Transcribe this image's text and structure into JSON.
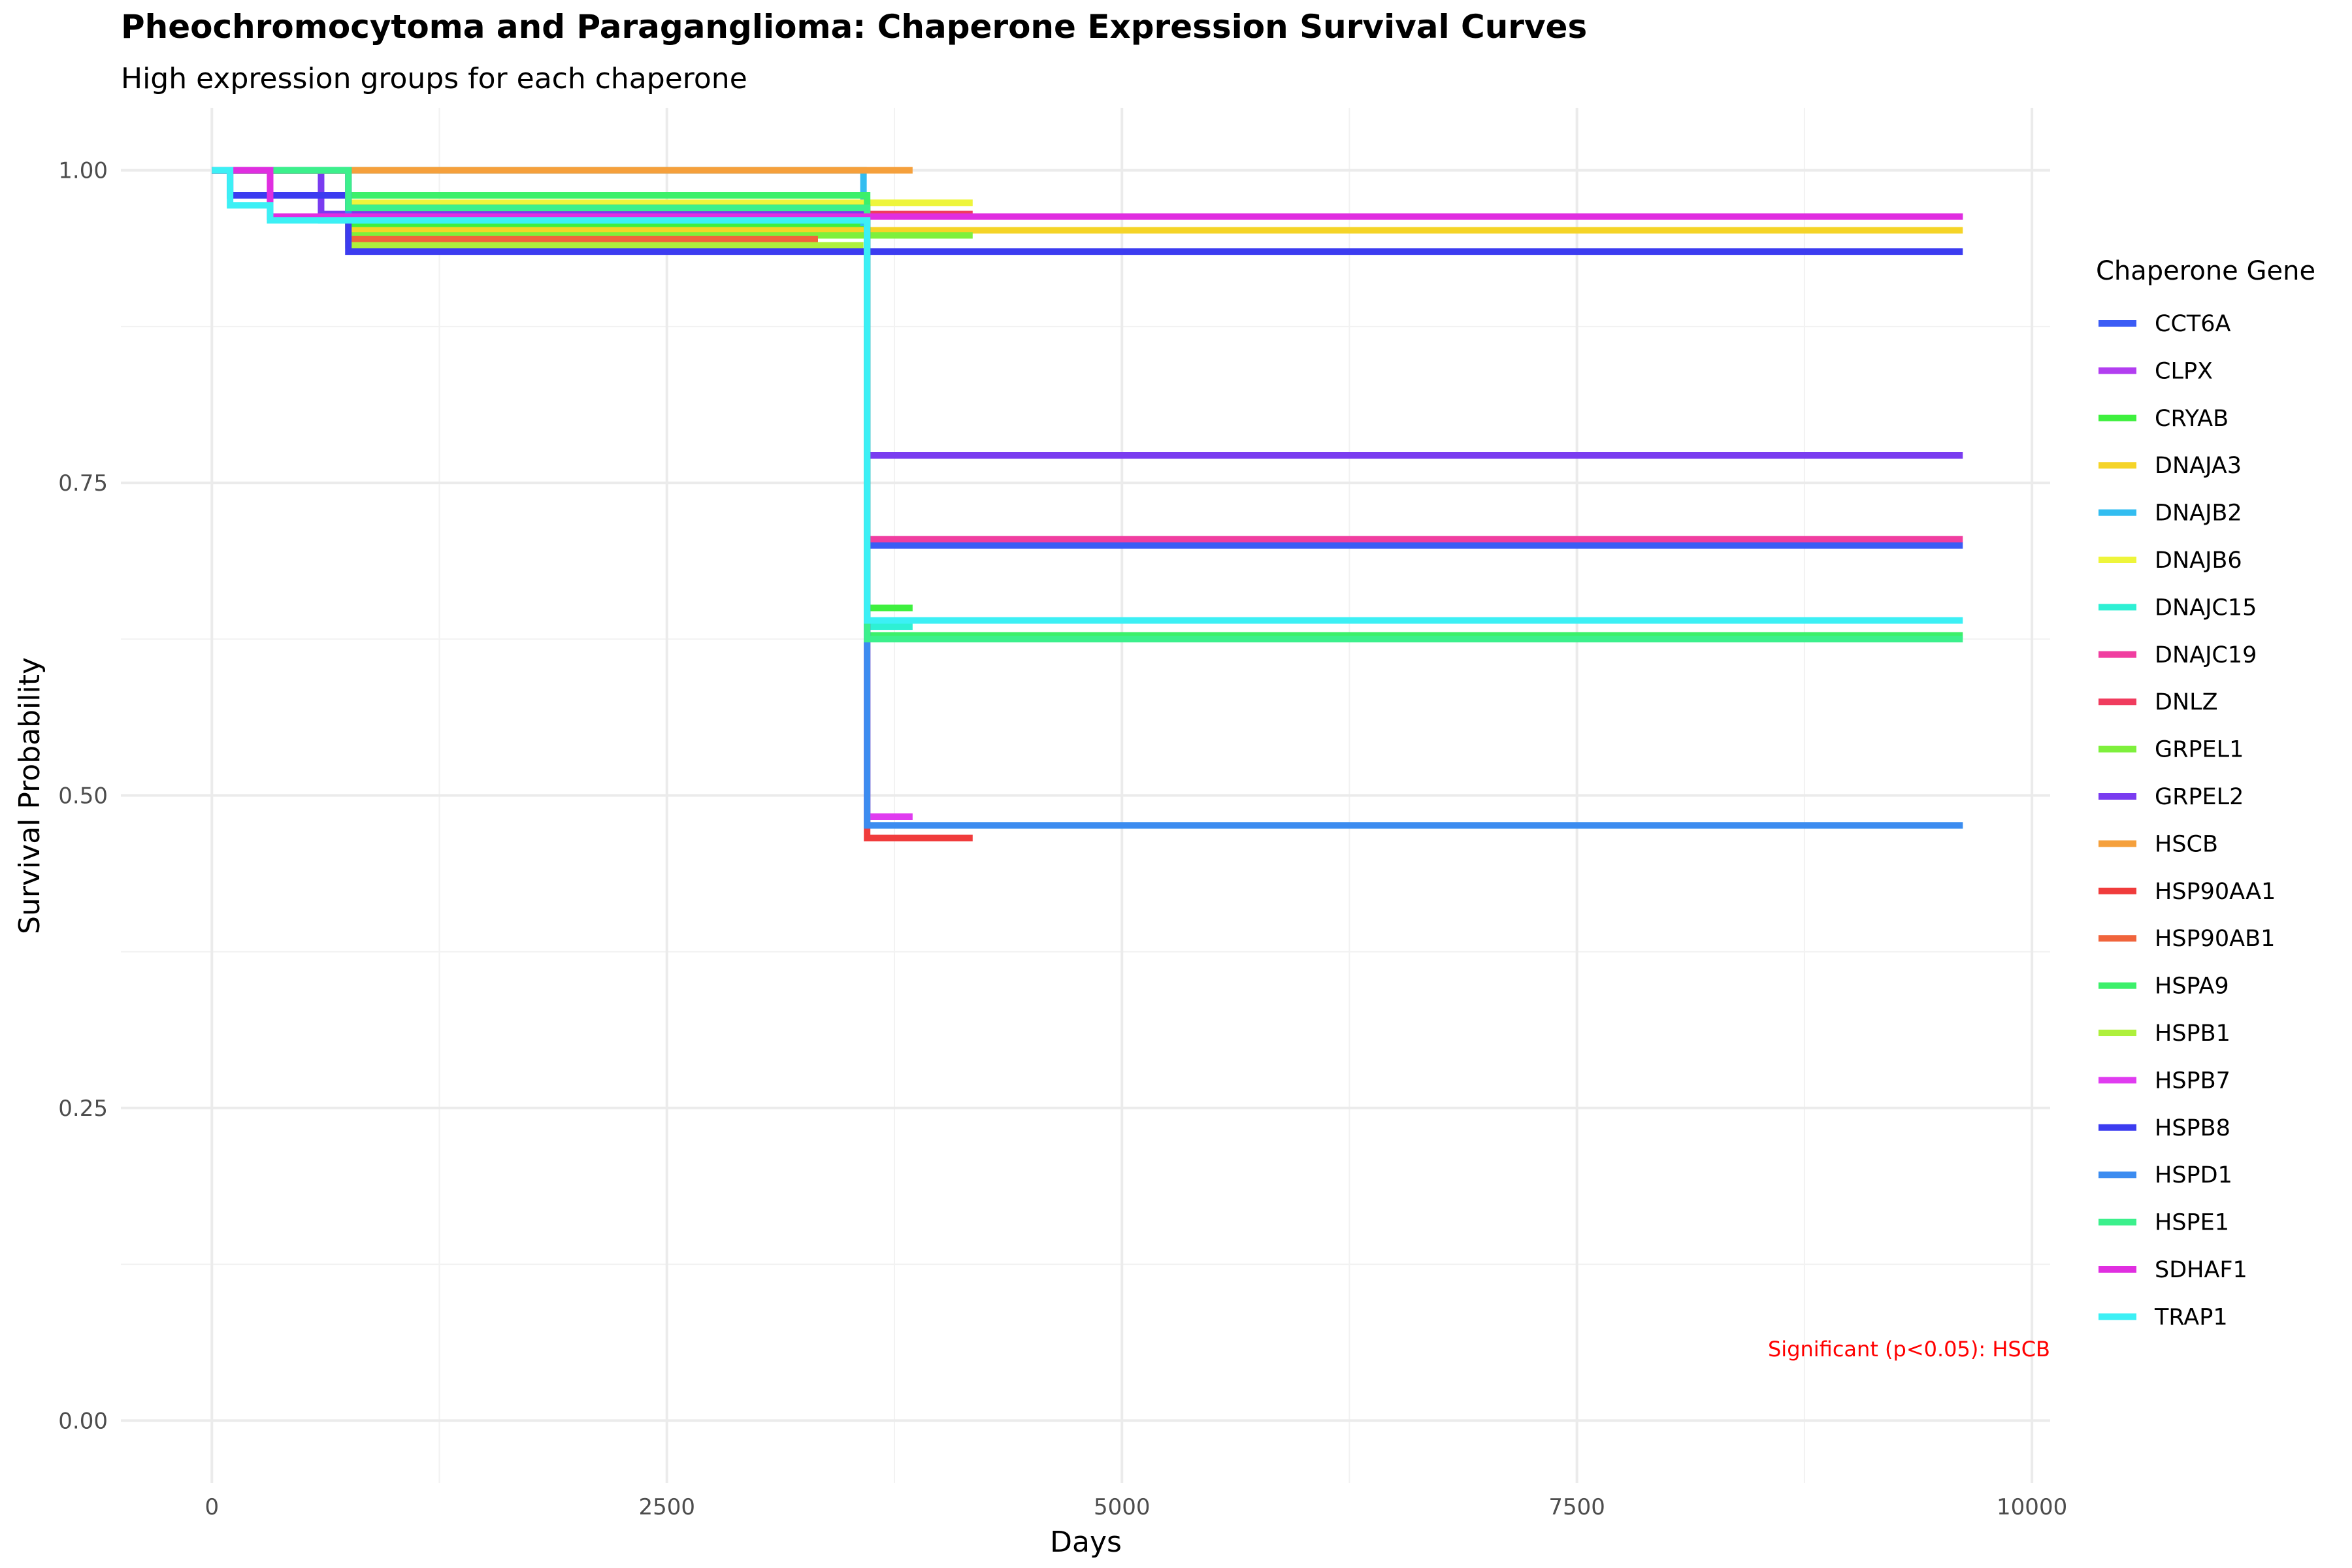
{
  "chart_data": {
    "type": "line",
    "title": "Pheochromocytoma and Paraganglioma: Chaperone Expression Survival Curves",
    "subtitle": "High expression groups for each chaperone",
    "xlabel": "Days",
    "ylabel": "Survival Probability",
    "xlim": [
      -500,
      10100
    ],
    "ylim": [
      -0.05,
      1.05
    ],
    "x_ticks": [
      0,
      2500,
      5000,
      7500,
      10000
    ],
    "x_tick_labels": [
      "0",
      "2500",
      "5000",
      "7500",
      "10000"
    ],
    "y_ticks": [
      0,
      0.25,
      0.5,
      0.75,
      1.0
    ],
    "y_tick_labels": [
      "0.00",
      "0.25",
      "0.50",
      "0.75",
      "1.00"
    ],
    "grid": true,
    "legend": {
      "title": "Chaperone Gene",
      "position": "right"
    },
    "annotation": "Significant (p<0.05): HSCB",
    "series": [
      {
        "name": "CCT6A",
        "color": "#3b5cf5",
        "x": [
          0,
          750,
          3580,
          3600,
          9620
        ],
        "y": [
          1.0,
          0.955,
          0.955,
          0.7,
          0.7
        ]
      },
      {
        "name": "CLPX",
        "color": "#b23ef0",
        "x": [
          0,
          320,
          3580,
          9620
        ],
        "y": [
          1.0,
          0.963,
          0.963,
          0.963
        ]
      },
      {
        "name": "CRYAB",
        "color": "#3ef03e",
        "x": [
          0,
          750,
          3580,
          3600,
          3850
        ],
        "y": [
          1.0,
          0.955,
          0.955,
          0.65,
          0.65
        ]
      },
      {
        "name": "DNAJA3",
        "color": "#f5d428",
        "x": [
          0,
          750,
          3580,
          9620
        ],
        "y": [
          1.0,
          0.952,
          0.952,
          0.952
        ]
      },
      {
        "name": "DNAJB2",
        "color": "#33bdf0",
        "x": [
          0,
          3580,
          3600,
          9620
        ],
        "y": [
          1.0,
          0.958,
          0.476,
          0.476
        ]
      },
      {
        "name": "DNAJB6",
        "color": "#eef53b",
        "x": [
          0,
          750,
          3580,
          4180
        ],
        "y": [
          1.0,
          0.974,
          0.974,
          0.974
        ]
      },
      {
        "name": "DNAJC15",
        "color": "#2ef0d4",
        "x": [
          0,
          600,
          3580,
          3600,
          3850
        ],
        "y": [
          1.0,
          0.96,
          0.96,
          0.635,
          0.635
        ]
      },
      {
        "name": "DNAJC19",
        "color": "#f03ea0",
        "x": [
          0,
          750,
          3580,
          3600,
          9620
        ],
        "y": [
          1.0,
          0.965,
          0.965,
          0.705,
          0.705
        ]
      },
      {
        "name": "DNLZ",
        "color": "#f03c5e",
        "x": [
          0,
          750,
          3580,
          4180
        ],
        "y": [
          1.0,
          0.965,
          0.965,
          0.965
        ]
      },
      {
        "name": "GRPEL1",
        "color": "#7ef03c",
        "x": [
          0,
          750,
          3580,
          4180
        ],
        "y": [
          1.0,
          0.948,
          0.948,
          0.948
        ]
      },
      {
        "name": "GRPEL2",
        "color": "#7a3cf0",
        "x": [
          0,
          600,
          3580,
          3600,
          9620
        ],
        "y": [
          1.0,
          0.965,
          0.965,
          0.772,
          0.772
        ]
      },
      {
        "name": "HSCB",
        "color": "#f5a03c",
        "x": [
          0,
          3850
        ],
        "y": [
          1.0,
          1.0
        ]
      },
      {
        "name": "HSP90AA1",
        "color": "#f03c3c",
        "x": [
          0,
          750,
          3580,
          3600,
          4180
        ],
        "y": [
          1.0,
          0.97,
          0.97,
          0.466,
          0.466
        ]
      },
      {
        "name": "HSP90AB1",
        "color": "#f0643c",
        "x": [
          0,
          750,
          3330
        ],
        "y": [
          1.0,
          0.945,
          0.945
        ]
      },
      {
        "name": "HSPA9",
        "color": "#3cf06a",
        "x": [
          0,
          750,
          3580,
          3600,
          9620
        ],
        "y": [
          1.0,
          0.98,
          0.98,
          0.628,
          0.628
        ]
      },
      {
        "name": "HSPB1",
        "color": "#aef03c",
        "x": [
          0,
          750,
          3580
        ],
        "y": [
          1.0,
          0.94,
          0.94
        ]
      },
      {
        "name": "HSPB7",
        "color": "#e03cf0",
        "x": [
          0,
          750,
          3580,
          3600,
          3850
        ],
        "y": [
          1.0,
          0.962,
          0.962,
          0.483,
          0.483
        ]
      },
      {
        "name": "HSPB8",
        "color": "#3c3cf0",
        "x": [
          0,
          100,
          750,
          3580,
          9620
        ],
        "y": [
          1.0,
          0.98,
          0.935,
          0.935,
          0.935
        ]
      },
      {
        "name": "HSPD1",
        "color": "#3c8cf0",
        "x": [
          0,
          750,
          3580,
          3600,
          9620
        ],
        "y": [
          1.0,
          0.962,
          0.962,
          0.476,
          0.476
        ]
      },
      {
        "name": "HSPE1",
        "color": "#3cf08c",
        "x": [
          0,
          750,
          3580,
          3600,
          9620
        ],
        "y": [
          1.0,
          0.97,
          0.97,
          0.625,
          0.625
        ]
      },
      {
        "name": "SDHAF1",
        "color": "#e02ee0",
        "x": [
          0,
          320,
          3580,
          9620
        ],
        "y": [
          1.0,
          0.963,
          0.963,
          0.963
        ]
      },
      {
        "name": "TRAP1",
        "color": "#3cf0f5",
        "x": [
          0,
          100,
          320,
          3580,
          3600,
          9620
        ],
        "y": [
          1.0,
          0.972,
          0.96,
          0.96,
          0.64,
          0.64
        ]
      }
    ]
  }
}
